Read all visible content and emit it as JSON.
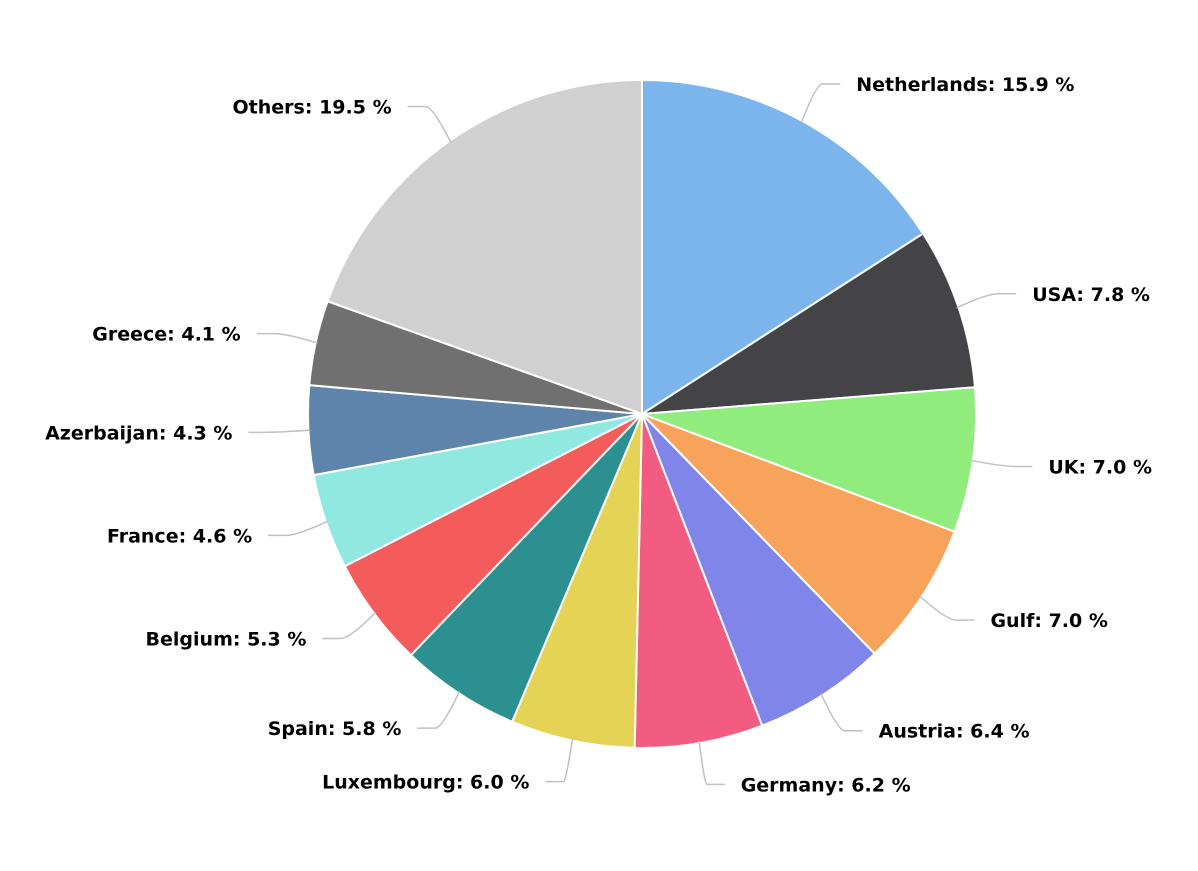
{
  "chart_data": {
    "type": "pie",
    "title": "",
    "unit": "%",
    "slices": [
      {
        "name": "Netherlands",
        "value": 15.9,
        "label": "Netherlands: 15.9 %",
        "color": "#7cb5ec"
      },
      {
        "name": "USA",
        "value": 7.8,
        "label": "USA: 7.8 %",
        "color": "#434348"
      },
      {
        "name": "UK",
        "value": 7.0,
        "label": "UK: 7.0 %",
        "color": "#90ed7d"
      },
      {
        "name": "Gulf",
        "value": 7.0,
        "label": "Gulf: 7.0 %",
        "color": "#f7a35c"
      },
      {
        "name": "Austria",
        "value": 6.4,
        "label": "Austria: 6.4 %",
        "color": "#8085e9"
      },
      {
        "name": "Germany",
        "value": 6.2,
        "label": "Germany: 6.2 %",
        "color": "#f15c80"
      },
      {
        "name": "Luxembourg",
        "value": 6.0,
        "label": "Luxembourg: 6.0 %",
        "color": "#e4d354"
      },
      {
        "name": "Spain",
        "value": 5.8,
        "label": "Spain: 5.8 %",
        "color": "#2b908f"
      },
      {
        "name": "Belgium",
        "value": 5.3,
        "label": "Belgium: 5.3 %",
        "color": "#f45b5b"
      },
      {
        "name": "France",
        "value": 4.6,
        "label": "France: 4.6 %",
        "color": "#91e8e1"
      },
      {
        "name": "Azerbaijan",
        "value": 4.3,
        "label": "Azerbaijan: 4.3 %",
        "color": "#5f84ab"
      },
      {
        "name": "Greece",
        "value": 4.1,
        "label": "Greece: 4.1 %",
        "color": "#707070"
      },
      {
        "name": "Others",
        "value": 19.5,
        "label": "Others: 19.5 %",
        "color": "#d0d0d0"
      }
    ]
  }
}
